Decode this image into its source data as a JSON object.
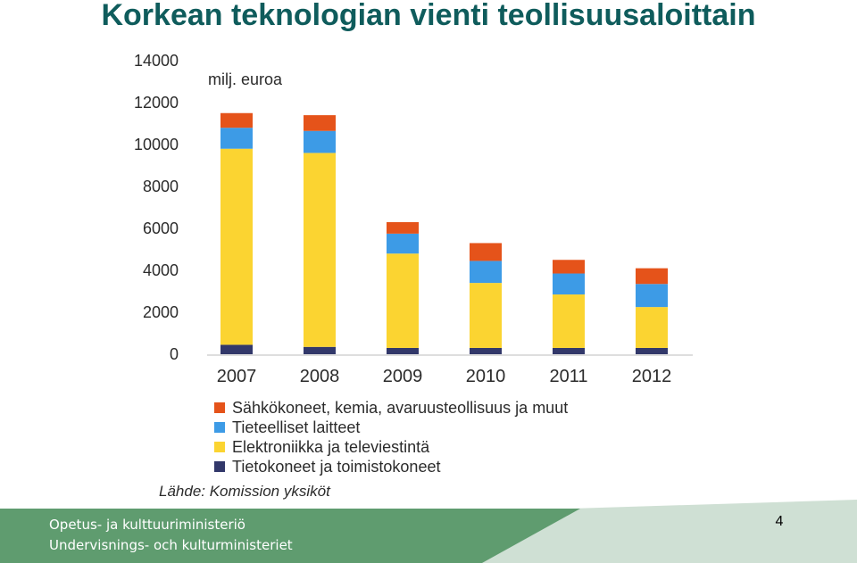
{
  "slide": {
    "title": "Korkean teknologian vienti teollisuusaloittain",
    "page_number": "4"
  },
  "footer": {
    "line1": "Opetus- ja kulttuuriministeriö",
    "line2": "Undervisnings- och kulturministeriet",
    "band_colors": [
      "#5f9c6f",
      "#cfe0d4"
    ]
  },
  "chart_data": {
    "type": "bar",
    "stacked": true,
    "unit_label": "milj. euroa",
    "categories": [
      "2007",
      "2008",
      "2009",
      "2010",
      "2011",
      "2012"
    ],
    "ylim": [
      0,
      14000
    ],
    "yticks": [
      "0",
      "2000",
      "4000",
      "6000",
      "8000",
      "10000",
      "12000",
      "14000"
    ],
    "grid": false,
    "legend_position": "bottom",
    "series": [
      {
        "name": "Tietokoneet ja toimistokoneet",
        "color": "#32386a",
        "values": [
          450,
          350,
          300,
          300,
          300,
          300
        ]
      },
      {
        "name": "Elektroniikka ja televiestintä",
        "color": "#fbd431",
        "values": [
          9350,
          9250,
          4500,
          3100,
          2550,
          1950
        ]
      },
      {
        "name": "Tieteelliset laitteet",
        "color": "#3d9be6",
        "values": [
          1000,
          1050,
          950,
          1050,
          1000,
          1100
        ]
      },
      {
        "name": "Sähkökoneet, kemia, avaruusteollisuus ja muut",
        "color": "#e5531a",
        "values": [
          700,
          750,
          550,
          850,
          650,
          750
        ]
      }
    ],
    "legend_order": [
      3,
      2,
      1,
      0
    ],
    "source": "Lähde: Komission yksiköt"
  }
}
